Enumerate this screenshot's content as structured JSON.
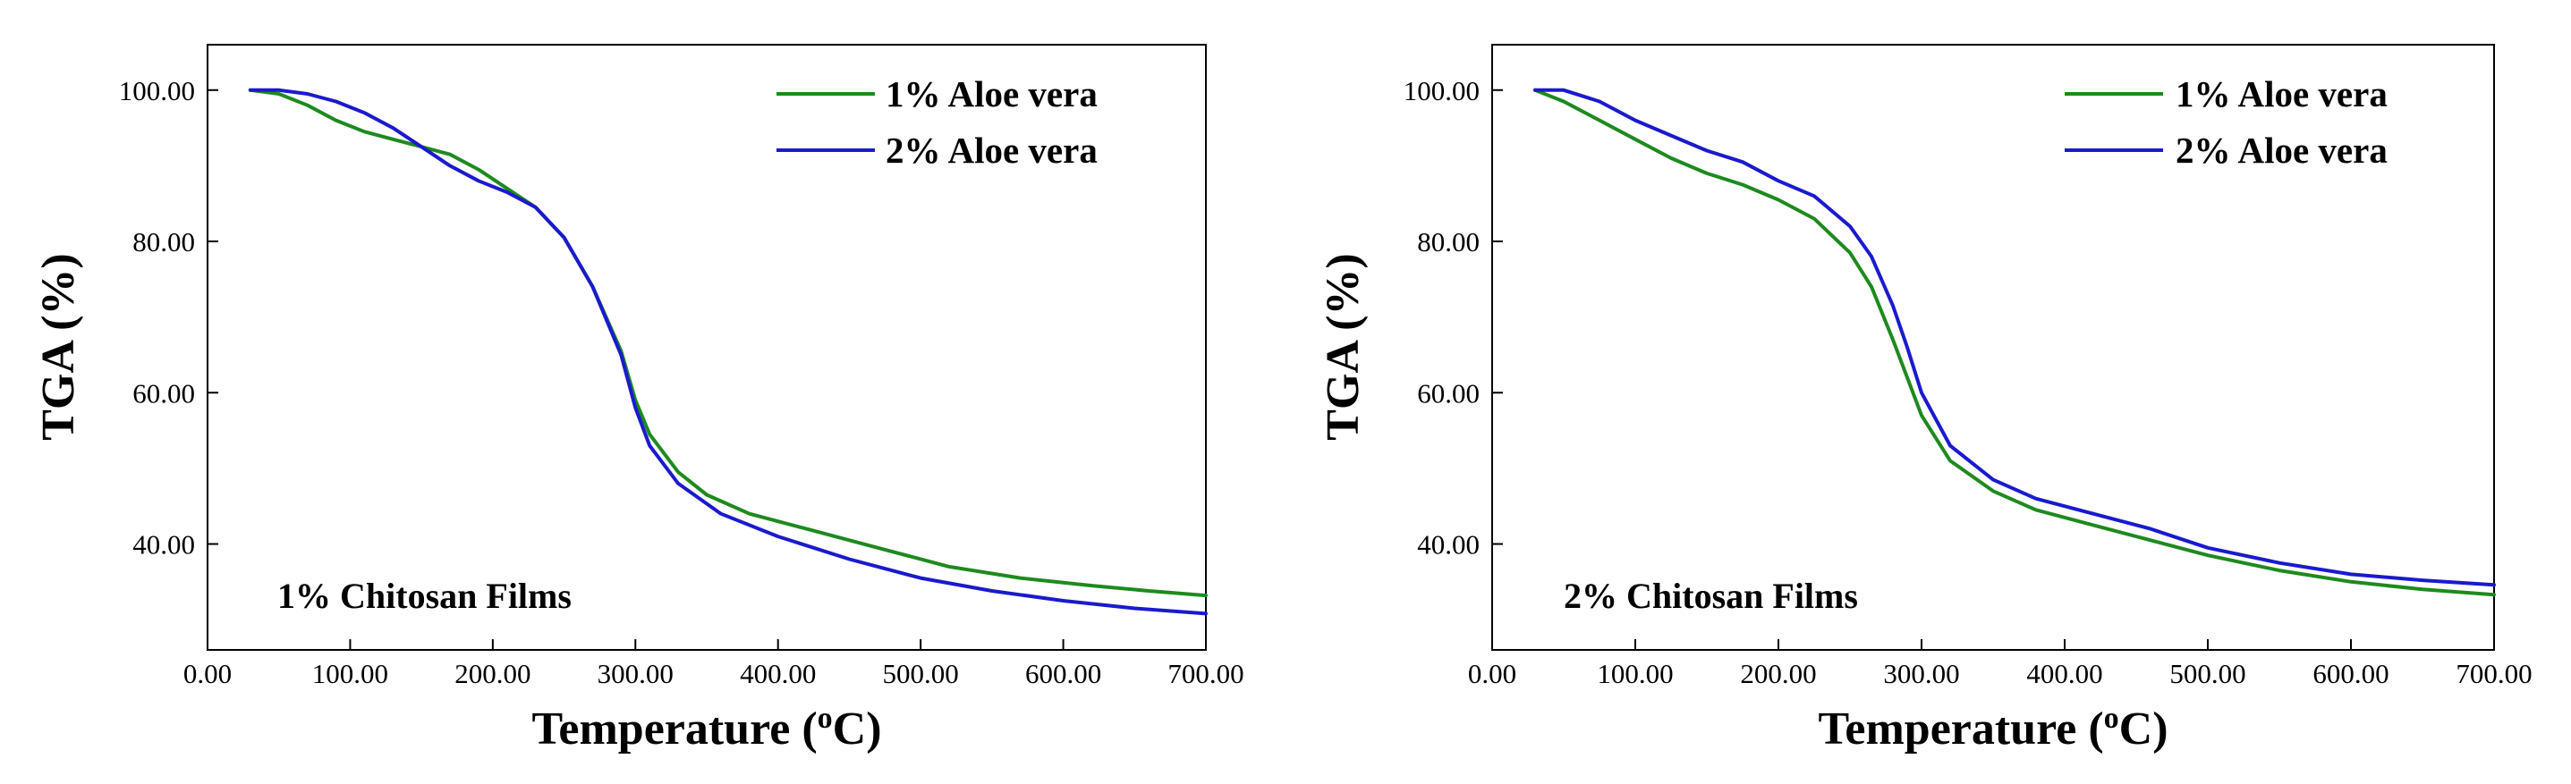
{
  "chart_data": [
    {
      "type": "line",
      "panel": "left",
      "title": "",
      "annotation": "1% Chitosan Films",
      "xlabel": "Temperature (",
      "xlabel_sup": "o",
      "xlabel_unit": "C)",
      "ylabel": "TGA (%)",
      "xlim": [
        0,
        700
      ],
      "ylim": [
        26,
        106
      ],
      "grid": false,
      "legend_position": "top-right",
      "x_ticks": [
        0,
        100,
        200,
        300,
        400,
        500,
        600,
        700
      ],
      "x_tick_labels": [
        "0.00",
        "100.00",
        "200.00",
        "300.00",
        "400.00",
        "500.00",
        "600.00",
        "700.00"
      ],
      "y_ticks": [
        40,
        60,
        80,
        100
      ],
      "y_tick_labels": [
        "40.00",
        "60.00",
        "80.00",
        "100.00"
      ],
      "series": [
        {
          "name": "1% Aloe vera",
          "color": "#1e8a1e",
          "points": [
            [
              30,
              100
            ],
            [
              50,
              99.5
            ],
            [
              70,
              98
            ],
            [
              90,
              96
            ],
            [
              110,
              94.5
            ],
            [
              130,
              93.5
            ],
            [
              150,
              92.5
            ],
            [
              170,
              91.5
            ],
            [
              190,
              89.5
            ],
            [
              210,
              87
            ],
            [
              230,
              84.5
            ],
            [
              250,
              80.5
            ],
            [
              270,
              74
            ],
            [
              290,
              65.5
            ],
            [
              300,
              59
            ],
            [
              310,
              54.5
            ],
            [
              330,
              49.5
            ],
            [
              350,
              46.5
            ],
            [
              380,
              44
            ],
            [
              420,
              42
            ],
            [
              470,
              39.5
            ],
            [
              520,
              37
            ],
            [
              570,
              35.5
            ],
            [
              620,
              34.5
            ],
            [
              660,
              33.8
            ],
            [
              700,
              33.2
            ]
          ]
        },
        {
          "name": "2% Aloe vera",
          "color": "#1a1acd",
          "points": [
            [
              30,
              100
            ],
            [
              50,
              100
            ],
            [
              70,
              99.5
            ],
            [
              90,
              98.5
            ],
            [
              110,
              97
            ],
            [
              130,
              95
            ],
            [
              150,
              92.5
            ],
            [
              170,
              90
            ],
            [
              190,
              88
            ],
            [
              210,
              86.5
            ],
            [
              230,
              84.5
            ],
            [
              250,
              80.5
            ],
            [
              270,
              74
            ],
            [
              290,
              65
            ],
            [
              300,
              58
            ],
            [
              310,
              53
            ],
            [
              330,
              48
            ],
            [
              360,
              44
            ],
            [
              400,
              41
            ],
            [
              450,
              38
            ],
            [
              500,
              35.5
            ],
            [
              550,
              33.8
            ],
            [
              600,
              32.5
            ],
            [
              650,
              31.5
            ],
            [
              700,
              30.8
            ]
          ]
        }
      ]
    },
    {
      "type": "line",
      "panel": "right",
      "title": "",
      "annotation": "2% Chitosan Films",
      "xlabel": "Temperature (",
      "xlabel_sup": "o",
      "xlabel_unit": "C)",
      "ylabel": "TGA (%)",
      "xlim": [
        0,
        700
      ],
      "ylim": [
        26,
        106
      ],
      "grid": false,
      "legend_position": "top-right",
      "x_ticks": [
        0,
        100,
        200,
        300,
        400,
        500,
        600,
        700
      ],
      "x_tick_labels": [
        "0.00",
        "100.00",
        "200.00",
        "300.00",
        "400.00",
        "500.00",
        "600.00",
        "700.00"
      ],
      "y_ticks": [
        40,
        60,
        80,
        100
      ],
      "y_tick_labels": [
        "40.00",
        "60.00",
        "80.00",
        "100.00"
      ],
      "series": [
        {
          "name": "1% Aloe vera",
          "color": "#1e8a1e",
          "points": [
            [
              30,
              100
            ],
            [
              50,
              98.5
            ],
            [
              75,
              96
            ],
            [
              100,
              93.5
            ],
            [
              125,
              91
            ],
            [
              150,
              89
            ],
            [
              175,
              87.5
            ],
            [
              200,
              85.5
            ],
            [
              225,
              83
            ],
            [
              250,
              78.5
            ],
            [
              265,
              74
            ],
            [
              280,
              67
            ],
            [
              290,
              62
            ],
            [
              300,
              57
            ],
            [
              320,
              51
            ],
            [
              350,
              47
            ],
            [
              380,
              44.5
            ],
            [
              420,
              42.5
            ],
            [
              460,
              40.5
            ],
            [
              500,
              38.5
            ],
            [
              550,
              36.5
            ],
            [
              600,
              35
            ],
            [
              650,
              34
            ],
            [
              700,
              33.3
            ]
          ]
        },
        {
          "name": "2% Aloe vera",
          "color": "#1a1acd",
          "points": [
            [
              30,
              100
            ],
            [
              50,
              100
            ],
            [
              75,
              98.5
            ],
            [
              100,
              96
            ],
            [
              125,
              94
            ],
            [
              150,
              92
            ],
            [
              175,
              90.5
            ],
            [
              200,
              88
            ],
            [
              225,
              86
            ],
            [
              250,
              82
            ],
            [
              265,
              78
            ],
            [
              280,
              71.5
            ],
            [
              290,
              66
            ],
            [
              300,
              60
            ],
            [
              320,
              53
            ],
            [
              350,
              48.5
            ],
            [
              380,
              46
            ],
            [
              420,
              44
            ],
            [
              460,
              42
            ],
            [
              500,
              39.5
            ],
            [
              550,
              37.5
            ],
            [
              600,
              36
            ],
            [
              650,
              35.2
            ],
            [
              700,
              34.6
            ]
          ]
        }
      ]
    }
  ]
}
